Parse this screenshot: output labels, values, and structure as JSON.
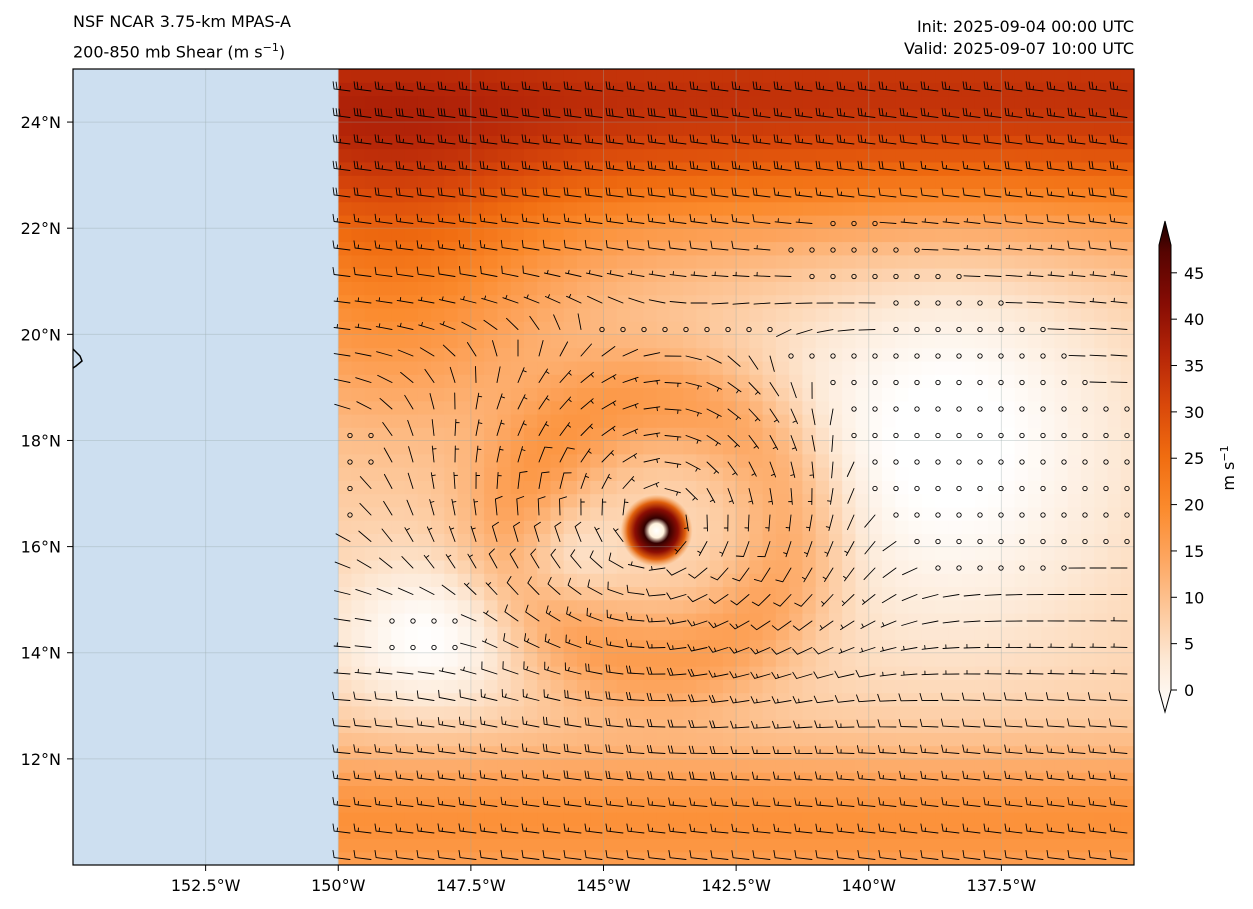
{
  "header": {
    "left_line1": "NSF NCAR 3.75-km MPAS-A",
    "left_line2": "200-850 mb Shear (m s",
    "left_line2_sup": "−1",
    "left_line2_end": ")",
    "right_line1": "Init: 2025-09-04 00:00 UTC",
    "right_line2": "Valid: 2025-09-07 10:00 UTC"
  },
  "map": {
    "lon_range": [
      -155,
      -135
    ],
    "lat_range": [
      10,
      25
    ],
    "land_color": "#cddff0",
    "land_edge_lon": -150,
    "lon_ticks": [
      {
        "value": -152.5,
        "label": "152.5°W"
      },
      {
        "value": -150,
        "label": "150°W"
      },
      {
        "value": -147.5,
        "label": "147.5°W"
      },
      {
        "value": -145,
        "label": "145°W"
      },
      {
        "value": -142.5,
        "label": "142.5°W"
      },
      {
        "value": -140,
        "label": "140°W"
      },
      {
        "value": -137.5,
        "label": "137.5°W"
      }
    ],
    "lat_ticks": [
      {
        "value": 12,
        "label": "12°N"
      },
      {
        "value": 14,
        "label": "14°N"
      },
      {
        "value": 16,
        "label": "16°N"
      },
      {
        "value": 18,
        "label": "18°N"
      },
      {
        "value": 20,
        "label": "20°N"
      },
      {
        "value": 22,
        "label": "22°N"
      },
      {
        "value": 24,
        "label": "24°N"
      }
    ],
    "cyclone_center": {
      "lon": -144.0,
      "lat": 16.3
    },
    "anticyclone_center": {
      "lon": -148.3,
      "lat": 14.3
    }
  },
  "colorbar": {
    "unit": "m s",
    "unit_sup": "−1",
    "min": 0,
    "max": 48,
    "ticks": [
      0,
      5,
      10,
      15,
      20,
      25,
      30,
      35,
      40,
      45
    ],
    "colors": [
      "#ffffff",
      "#fde9d6",
      "#fdc89b",
      "#fda660",
      "#fb8a2c",
      "#f06c10",
      "#d9480a",
      "#b52508",
      "#860c04",
      "#560401",
      "#1a0000"
    ]
  }
}
